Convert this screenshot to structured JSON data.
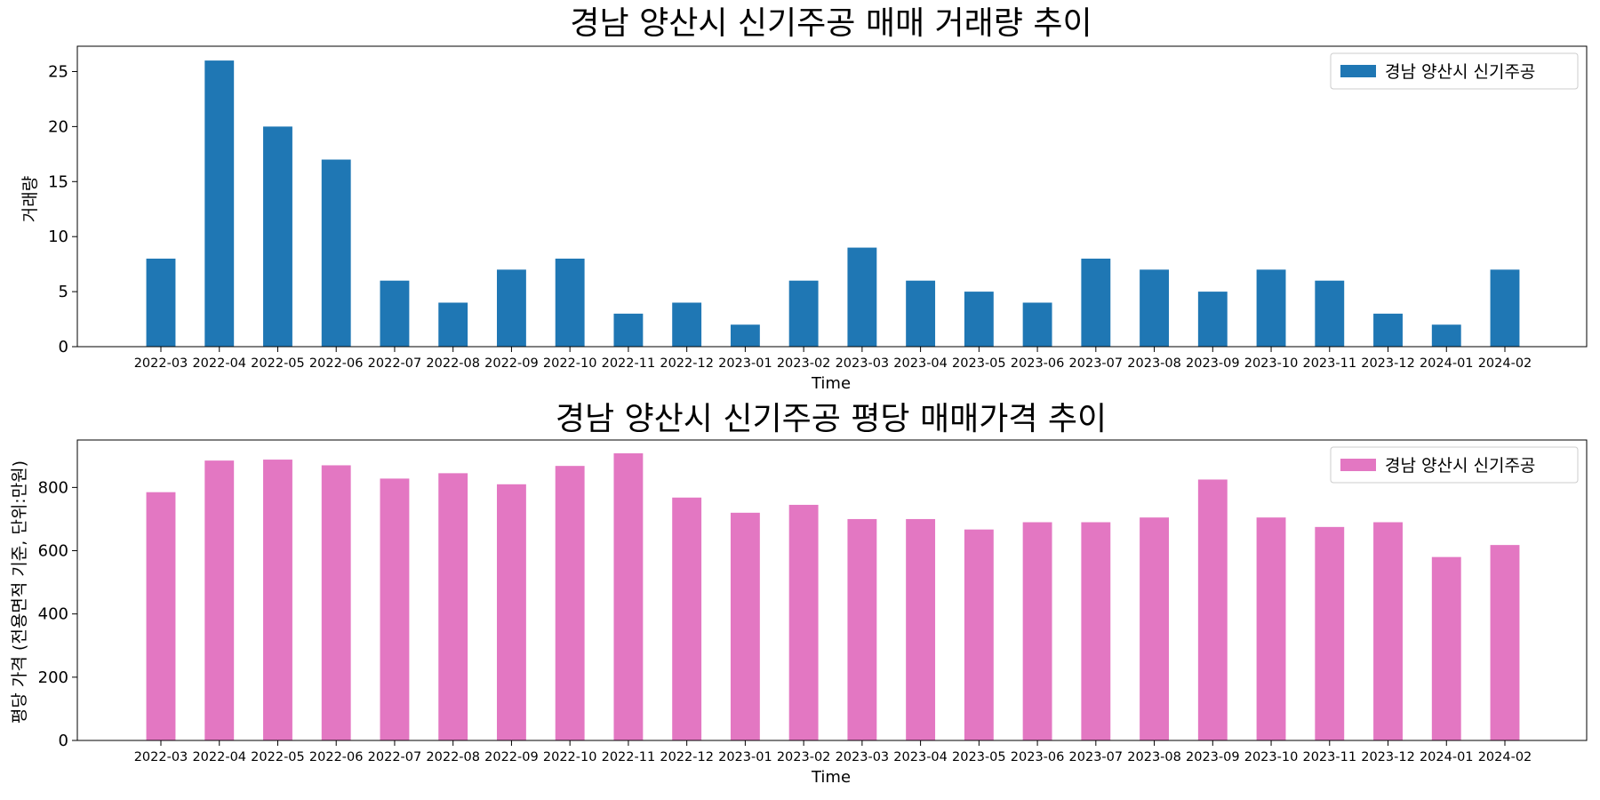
{
  "chart_data": [
    {
      "type": "bar",
      "title": "경남 양산시 신기주공 매매 거래량 추이",
      "xlabel": "Time",
      "ylabel": "거래량",
      "legend": "경남 양산시 신기주공",
      "legend_position": "top-right",
      "color": "#1f77b4",
      "ylim": [
        0,
        27.3
      ],
      "yticks": [
        0,
        5,
        10,
        15,
        20,
        25
      ],
      "categories": [
        "2022-03",
        "2022-04",
        "2022-05",
        "2022-06",
        "2022-07",
        "2022-08",
        "2022-09",
        "2022-10",
        "2022-11",
        "2022-12",
        "2023-01",
        "2023-02",
        "2023-03",
        "2023-04",
        "2023-05",
        "2023-06",
        "2023-07",
        "2023-08",
        "2023-09",
        "2023-10",
        "2023-11",
        "2023-12",
        "2024-01",
        "2024-02"
      ],
      "values": [
        8,
        26,
        20,
        17,
        6,
        4,
        7,
        8,
        3,
        4,
        2,
        6,
        9,
        6,
        5,
        4,
        8,
        7,
        5,
        7,
        6,
        3,
        2,
        7
      ]
    },
    {
      "type": "bar",
      "title": "경남 양산시 신기주공 평당 매매가격 추이",
      "xlabel": "Time",
      "ylabel": "평당 가격 (전용면적 기준, 단위:만원)",
      "legend": "경남 양산시 신기주공",
      "legend_position": "top-right",
      "color": "#e377c2",
      "ylim": [
        0,
        950
      ],
      "yticks": [
        0,
        200,
        400,
        600,
        800
      ],
      "categories": [
        "2022-03",
        "2022-04",
        "2022-05",
        "2022-06",
        "2022-07",
        "2022-08",
        "2022-09",
        "2022-10",
        "2022-11",
        "2022-12",
        "2023-01",
        "2023-02",
        "2023-03",
        "2023-04",
        "2023-05",
        "2023-06",
        "2023-07",
        "2023-08",
        "2023-09",
        "2023-10",
        "2023-11",
        "2023-12",
        "2024-01",
        "2024-02"
      ],
      "values": [
        785,
        885,
        888,
        870,
        828,
        845,
        810,
        868,
        908,
        768,
        720,
        745,
        700,
        700,
        667,
        690,
        690,
        705,
        825,
        705,
        675,
        690,
        580,
        618
      ]
    }
  ]
}
